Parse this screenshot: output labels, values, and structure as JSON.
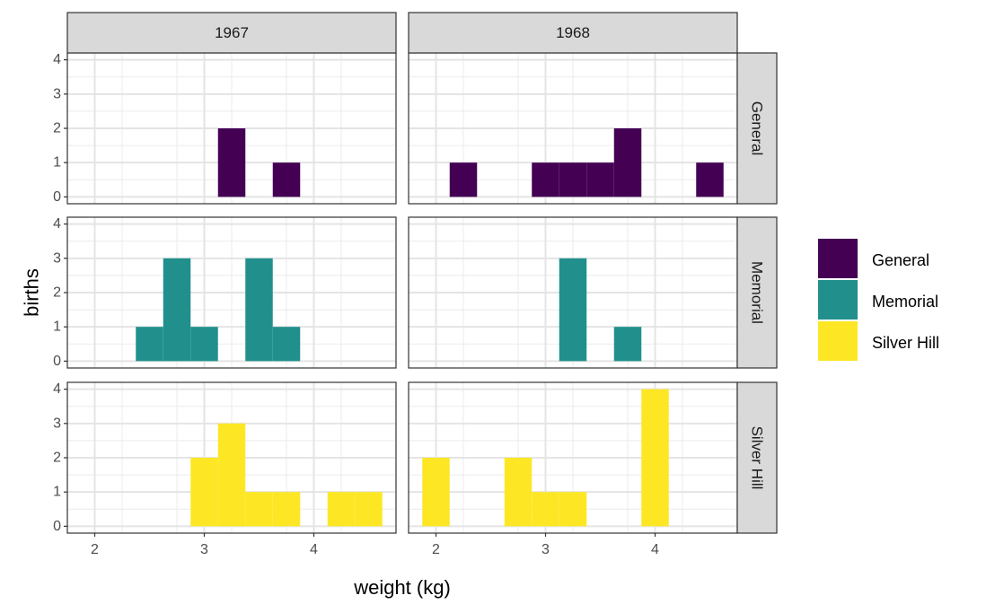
{
  "chart_data": {
    "type": "bar",
    "xlabel": "weight (kg)",
    "ylabel": "births",
    "xlim": [
      1.75,
      4.75
    ],
    "ylim": [
      -0.2,
      4.2
    ],
    "x_ticks": [
      2,
      3,
      4
    ],
    "y_ticks": [
      0,
      1,
      2,
      3,
      4
    ],
    "bin_width": 0.25,
    "grid": true,
    "legend_position": "right",
    "column_facets": [
      "1967",
      "1968"
    ],
    "row_facets": [
      "General",
      "Memorial",
      "Silver Hill"
    ],
    "series": [
      {
        "name": "General",
        "color": "#440154",
        "panels": [
          {
            "year": "1967",
            "bins": [
              {
                "x": 3.25,
                "y": 2
              },
              {
                "x": 3.75,
                "y": 1
              }
            ]
          },
          {
            "year": "1968",
            "bins": [
              {
                "x": 2.25,
                "y": 1
              },
              {
                "x": 3.0,
                "y": 1
              },
              {
                "x": 3.25,
                "y": 1
              },
              {
                "x": 3.5,
                "y": 1
              },
              {
                "x": 3.75,
                "y": 2
              },
              {
                "x": 4.5,
                "y": 1
              }
            ]
          }
        ]
      },
      {
        "name": "Memorial",
        "color": "#21908C",
        "panels": [
          {
            "year": "1967",
            "bins": [
              {
                "x": 2.5,
                "y": 1
              },
              {
                "x": 2.75,
                "y": 3
              },
              {
                "x": 3.0,
                "y": 1
              },
              {
                "x": 3.5,
                "y": 3
              },
              {
                "x": 3.75,
                "y": 1
              }
            ]
          },
          {
            "year": "1968",
            "bins": [
              {
                "x": 3.25,
                "y": 3
              },
              {
                "x": 3.75,
                "y": 1
              }
            ]
          }
        ]
      },
      {
        "name": "Silver Hill",
        "color": "#FDE725",
        "panels": [
          {
            "year": "1967",
            "bins": [
              {
                "x": 3.0,
                "y": 2
              },
              {
                "x": 3.25,
                "y": 3
              },
              {
                "x": 3.5,
                "y": 1
              },
              {
                "x": 3.75,
                "y": 1
              },
              {
                "x": 4.25,
                "y": 1
              },
              {
                "x": 4.5,
                "y": 1
              }
            ]
          },
          {
            "year": "1968",
            "bins": [
              {
                "x": 2.0,
                "y": 2
              },
              {
                "x": 2.75,
                "y": 2
              },
              {
                "x": 3.0,
                "y": 1
              },
              {
                "x": 3.25,
                "y": 1
              },
              {
                "x": 4.0,
                "y": 4
              }
            ]
          }
        ]
      }
    ]
  }
}
